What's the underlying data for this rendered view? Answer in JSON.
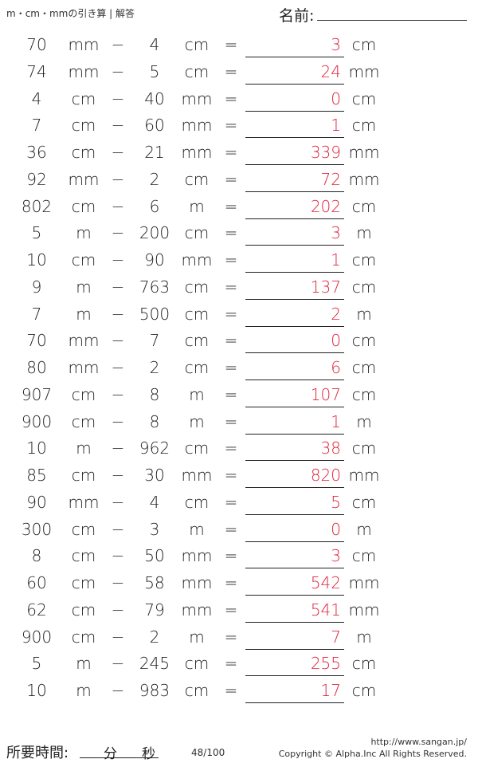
{
  "header": {
    "title": "m・cm・mmの引き算 | 解答",
    "name_label": "名前:"
  },
  "colors": {
    "answer": "#e0223a",
    "text": "#222222"
  },
  "operator": "−",
  "equals": "=",
  "problems": [
    {
      "a": "70",
      "ua": "mm",
      "b": "4",
      "ub": "cm",
      "ans": "3",
      "uans": "cm"
    },
    {
      "a": "74",
      "ua": "mm",
      "b": "5",
      "ub": "cm",
      "ans": "24",
      "uans": "mm"
    },
    {
      "a": "4",
      "ua": "cm",
      "b": "40",
      "ub": "mm",
      "ans": "0",
      "uans": "cm"
    },
    {
      "a": "7",
      "ua": "cm",
      "b": "60",
      "ub": "mm",
      "ans": "1",
      "uans": "cm"
    },
    {
      "a": "36",
      "ua": "cm",
      "b": "21",
      "ub": "mm",
      "ans": "339",
      "uans": "mm"
    },
    {
      "a": "92",
      "ua": "mm",
      "b": "2",
      "ub": "cm",
      "ans": "72",
      "uans": "mm"
    },
    {
      "a": "802",
      "ua": "cm",
      "b": "6",
      "ub": "m",
      "ans": "202",
      "uans": "cm"
    },
    {
      "a": "5",
      "ua": "m",
      "b": "200",
      "ub": "cm",
      "ans": "3",
      "uans": "m"
    },
    {
      "a": "10",
      "ua": "cm",
      "b": "90",
      "ub": "mm",
      "ans": "1",
      "uans": "cm"
    },
    {
      "a": "9",
      "ua": "m",
      "b": "763",
      "ub": "cm",
      "ans": "137",
      "uans": "cm"
    },
    {
      "a": "7",
      "ua": "m",
      "b": "500",
      "ub": "cm",
      "ans": "2",
      "uans": "m"
    },
    {
      "a": "70",
      "ua": "mm",
      "b": "7",
      "ub": "cm",
      "ans": "0",
      "uans": "cm"
    },
    {
      "a": "80",
      "ua": "mm",
      "b": "2",
      "ub": "cm",
      "ans": "6",
      "uans": "cm"
    },
    {
      "a": "907",
      "ua": "cm",
      "b": "8",
      "ub": "m",
      "ans": "107",
      "uans": "cm"
    },
    {
      "a": "900",
      "ua": "cm",
      "b": "8",
      "ub": "m",
      "ans": "1",
      "uans": "m"
    },
    {
      "a": "10",
      "ua": "m",
      "b": "962",
      "ub": "cm",
      "ans": "38",
      "uans": "cm"
    },
    {
      "a": "85",
      "ua": "cm",
      "b": "30",
      "ub": "mm",
      "ans": "820",
      "uans": "mm"
    },
    {
      "a": "90",
      "ua": "mm",
      "b": "4",
      "ub": "cm",
      "ans": "5",
      "uans": "cm"
    },
    {
      "a": "300",
      "ua": "cm",
      "b": "3",
      "ub": "m",
      "ans": "0",
      "uans": "m"
    },
    {
      "a": "8",
      "ua": "cm",
      "b": "50",
      "ub": "mm",
      "ans": "3",
      "uans": "cm"
    },
    {
      "a": "60",
      "ua": "cm",
      "b": "58",
      "ub": "mm",
      "ans": "542",
      "uans": "mm"
    },
    {
      "a": "62",
      "ua": "cm",
      "b": "79",
      "ub": "mm",
      "ans": "541",
      "uans": "mm"
    },
    {
      "a": "900",
      "ua": "cm",
      "b": "2",
      "ub": "m",
      "ans": "7",
      "uans": "m"
    },
    {
      "a": "5",
      "ua": "m",
      "b": "245",
      "ub": "cm",
      "ans": "255",
      "uans": "cm"
    },
    {
      "a": "10",
      "ua": "m",
      "b": "983",
      "ub": "cm",
      "ans": "17",
      "uans": "cm"
    }
  ],
  "footer": {
    "time_label": "所要時間:",
    "minutes": "分",
    "seconds": "秒",
    "page": "48/100",
    "url": "http://www.sangan.jp/",
    "copyright": "Copyright © Alpha.Inc All Rights Reserved."
  }
}
